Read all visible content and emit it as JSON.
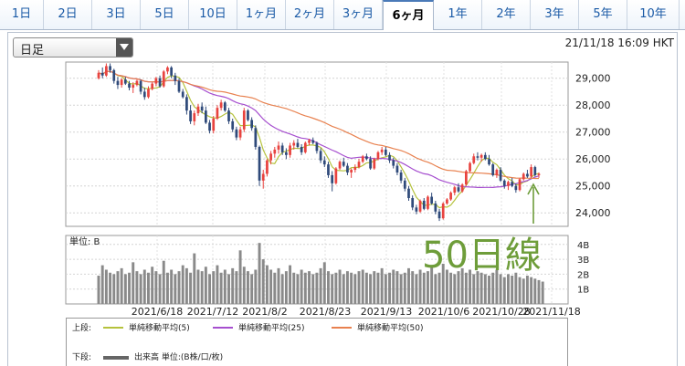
{
  "tabs": [
    {
      "label": "1日",
      "active": false
    },
    {
      "label": "2日",
      "active": false
    },
    {
      "label": "3日",
      "active": false
    },
    {
      "label": "5日",
      "active": false
    },
    {
      "label": "10日",
      "active": false
    },
    {
      "label": "1ヶ月",
      "active": false
    },
    {
      "label": "2ヶ月",
      "active": false
    },
    {
      "label": "3ヶ月",
      "active": false
    },
    {
      "label": "6ヶ月",
      "active": true
    },
    {
      "label": "1年",
      "active": false
    },
    {
      "label": "2年",
      "active": false
    },
    {
      "label": "3年",
      "active": false
    },
    {
      "label": "5年",
      "active": false
    },
    {
      "label": "10年",
      "active": false
    }
  ],
  "period_select": {
    "value": "日足"
  },
  "timestamp": "21/11/18 16:09 HKT",
  "annotation": {
    "text": "50日線"
  },
  "legend": {
    "upper_label": "上段:",
    "lower_label": "下段:",
    "items": [
      {
        "label": "単純移動平均(5)",
        "color": "#b5c23c"
      },
      {
        "label": "単純移動平均(25)",
        "color": "#a64fcf"
      },
      {
        "label": "単純移動平均(50)",
        "color": "#e8814f"
      }
    ],
    "volume_label": "出来高 単位:(B株/口/枚)",
    "volume_color": "#666666"
  },
  "chart_data": [
    {
      "type": "candlestick",
      "x_tick_labels": [
        "2021/6/18",
        "2021/7/12",
        "2021/8/2",
        "2021/8/23",
        "2021/9/13",
        "2021/10/6",
        "2021/10/28",
        "2021/11/18"
      ],
      "y_tick_labels": [
        "29,000",
        "28,000",
        "27,000",
        "26,000",
        "25,000",
        "24,000"
      ],
      "ylim": [
        23500,
        29600
      ],
      "up_color": "#e8433f",
      "down_color": "#2f4a7a",
      "ohlc": [
        [
          29000,
          29300,
          28950,
          29200
        ],
        [
          29200,
          29400,
          29000,
          29100
        ],
        [
          29100,
          29550,
          29050,
          29450
        ],
        [
          29450,
          29550,
          29200,
          29300
        ],
        [
          29300,
          29350,
          28800,
          28900
        ],
        [
          28900,
          29050,
          28600,
          28750
        ],
        [
          28750,
          29000,
          28650,
          28950
        ],
        [
          28950,
          29050,
          28750,
          28800
        ],
        [
          28800,
          28900,
          28550,
          28650
        ],
        [
          28650,
          28850,
          28450,
          28750
        ],
        [
          28750,
          28950,
          28700,
          28900
        ],
        [
          28900,
          28950,
          28400,
          28500
        ],
        [
          28500,
          28650,
          28200,
          28300
        ],
        [
          28300,
          28700,
          28250,
          28600
        ],
        [
          28600,
          28850,
          28550,
          28800
        ],
        [
          28800,
          29050,
          28700,
          29000
        ],
        [
          29000,
          29100,
          28650,
          28700
        ],
        [
          28700,
          29300,
          28650,
          29250
        ],
        [
          29250,
          29450,
          29150,
          29400
        ],
        [
          29400,
          29450,
          29000,
          29100
        ],
        [
          29100,
          29200,
          28750,
          28900
        ],
        [
          28900,
          29000,
          28450,
          28500
        ],
        [
          28500,
          28600,
          28250,
          28300
        ],
        [
          28300,
          28400,
          27650,
          27800
        ],
        [
          27800,
          28000,
          27300,
          27400
        ],
        [
          27400,
          27800,
          27250,
          27700
        ],
        [
          27700,
          28050,
          27600,
          27950
        ],
        [
          27950,
          28100,
          27700,
          27800
        ],
        [
          27800,
          27950,
          27300,
          27350
        ],
        [
          27350,
          27450,
          26950,
          27050
        ],
        [
          27050,
          27600,
          26950,
          27500
        ],
        [
          27500,
          28000,
          27450,
          27900
        ],
        [
          27900,
          28200,
          27800,
          28100
        ],
        [
          28100,
          28150,
          27750,
          27800
        ],
        [
          27800,
          27900,
          27300,
          27400
        ],
        [
          27400,
          27500,
          27000,
          27100
        ],
        [
          27100,
          27200,
          26700,
          26800
        ],
        [
          26800,
          27200,
          26700,
          27100
        ],
        [
          27100,
          27900,
          27000,
          27800
        ],
        [
          27800,
          27850,
          27400,
          27450
        ],
        [
          27450,
          27550,
          27050,
          27150
        ],
        [
          27150,
          27250,
          26350,
          26450
        ],
        [
          26450,
          26500,
          25000,
          25200
        ],
        [
          25200,
          25600,
          24900,
          25450
        ],
        [
          25450,
          26000,
          25350,
          25950
        ],
        [
          25950,
          26300,
          25800,
          26200
        ],
        [
          26200,
          26450,
          26050,
          26350
        ],
        [
          26350,
          26650,
          26200,
          26500
        ],
        [
          26500,
          26600,
          26150,
          26250
        ],
        [
          26250,
          26400,
          26000,
          26150
        ],
        [
          26150,
          26600,
          26050,
          26500
        ],
        [
          26500,
          26700,
          26350,
          26600
        ],
        [
          26600,
          26750,
          26400,
          26450
        ],
        [
          26450,
          26550,
          26150,
          26250
        ],
        [
          26250,
          26650,
          26200,
          26600
        ],
        [
          26600,
          26750,
          26500,
          26700
        ],
        [
          26700,
          26800,
          26550,
          26600
        ],
        [
          26600,
          26650,
          26200,
          26300
        ],
        [
          26300,
          26400,
          25850,
          25950
        ],
        [
          25950,
          26100,
          25700,
          25800
        ],
        [
          25800,
          25900,
          25300,
          25400
        ],
        [
          25400,
          25550,
          24800,
          25100
        ],
        [
          25100,
          25700,
          25050,
          25650
        ],
        [
          25650,
          25950,
          25600,
          25900
        ],
        [
          25900,
          26050,
          25700,
          25750
        ],
        [
          25750,
          25850,
          25400,
          25500
        ],
        [
          25500,
          25650,
          25300,
          25600
        ],
        [
          25600,
          25800,
          25500,
          25700
        ],
        [
          25700,
          26000,
          25650,
          25900
        ],
        [
          25900,
          26150,
          25850,
          26100
        ],
        [
          26100,
          26200,
          25950,
          26000
        ],
        [
          26000,
          26100,
          25600,
          25650
        ],
        [
          25650,
          26050,
          25600,
          26000
        ],
        [
          26000,
          26300,
          25950,
          26250
        ],
        [
          26250,
          26450,
          26150,
          26350
        ],
        [
          26350,
          26450,
          26100,
          26150
        ],
        [
          26150,
          26250,
          25850,
          25950
        ],
        [
          25950,
          26050,
          25650,
          25750
        ],
        [
          25750,
          25850,
          25400,
          25500
        ],
        [
          25500,
          25600,
          25100,
          25200
        ],
        [
          25200,
          25300,
          24800,
          24900
        ],
        [
          24900,
          25000,
          24450,
          24550
        ],
        [
          24550,
          24650,
          24100,
          24200
        ],
        [
          24200,
          24300,
          23950,
          24050
        ],
        [
          24050,
          24500,
          24000,
          24450
        ],
        [
          24450,
          24550,
          24100,
          24150
        ],
        [
          24150,
          24650,
          24100,
          24600
        ],
        [
          24600,
          24750,
          24300,
          24350
        ],
        [
          24350,
          24450,
          23950,
          24050
        ],
        [
          24050,
          24150,
          23700,
          23800
        ],
        [
          23800,
          24400,
          23750,
          24350
        ],
        [
          24350,
          24550,
          24300,
          24500
        ],
        [
          24500,
          24800,
          24450,
          24750
        ],
        [
          24750,
          25000,
          24650,
          24950
        ],
        [
          24950,
          25100,
          24750,
          24800
        ],
        [
          24800,
          25100,
          24750,
          25050
        ],
        [
          25050,
          25600,
          25000,
          25550
        ],
        [
          25550,
          25900,
          25500,
          25850
        ],
        [
          25850,
          26200,
          25800,
          26100
        ],
        [
          26100,
          26250,
          25950,
          26050
        ],
        [
          26050,
          26200,
          25900,
          26150
        ],
        [
          26150,
          26250,
          25950,
          26000
        ],
        [
          26000,
          26150,
          25750,
          25800
        ],
        [
          25800,
          25850,
          25350,
          25400
        ],
        [
          25400,
          25650,
          25300,
          25600
        ],
        [
          25600,
          25700,
          25150,
          25200
        ],
        [
          25200,
          25250,
          24900,
          25000
        ],
        [
          25000,
          25200,
          24850,
          25150
        ],
        [
          25150,
          25300,
          24950,
          25000
        ],
        [
          25000,
          25100,
          24750,
          24850
        ],
        [
          24850,
          25300,
          24800,
          25250
        ],
        [
          25250,
          25500,
          25200,
          25450
        ],
        [
          25450,
          25600,
          25300,
          25350
        ],
        [
          25350,
          25800,
          25300,
          25700
        ],
        [
          25700,
          25750,
          25350,
          25400
        ],
        [
          25400,
          25500,
          25300,
          25450
        ]
      ],
      "volume_ylim": [
        0,
        4.6
      ],
      "volume_tick_labels": [
        "4B",
        "3B",
        "2B",
        "1B"
      ],
      "volume_unit_label": "単位: B",
      "volume": [
        1.9,
        2.6,
        2.3,
        2.1,
        2.0,
        2.2,
        2.4,
        2.0,
        2.1,
        2.8,
        2.2,
        2.0,
        2.3,
        2.1,
        2.5,
        2.2,
        2.0,
        2.9,
        2.1,
        2.3,
        2.0,
        2.2,
        2.6,
        2.4,
        2.1,
        3.4,
        2.3,
        2.2,
        2.5,
        2.0,
        2.2,
        2.6,
        2.1,
        2.3,
        2.0,
        2.4,
        2.2,
        3.6,
        2.5,
        2.2,
        2.0,
        2.3,
        4.1,
        3.0,
        2.6,
        2.3,
        2.1,
        2.4,
        2.0,
        2.2,
        2.6,
        2.1,
        2.0,
        2.3,
        2.1,
        2.2,
        2.0,
        2.1,
        2.4,
        2.8,
        2.2,
        2.0,
        2.1,
        2.3,
        2.0,
        2.2,
        2.1,
        2.0,
        2.2,
        2.3,
        2.1,
        2.0,
        2.2,
        2.1,
        2.4,
        2.0,
        2.1,
        2.3,
        2.2,
        2.0,
        2.1,
        2.4,
        2.2,
        2.0,
        2.3,
        2.1,
        2.2,
        2.5,
        2.0,
        2.1,
        2.7,
        2.3,
        2.1,
        2.0,
        2.2,
        2.4,
        2.1,
        2.3,
        2.0,
        2.2,
        2.1,
        2.0,
        1.9,
        2.1,
        2.3,
        2.0,
        1.8,
        2.0,
        1.9,
        2.1,
        1.8,
        1.7,
        1.9,
        1.8,
        1.7,
        1.6,
        1.5
      ]
    }
  ]
}
